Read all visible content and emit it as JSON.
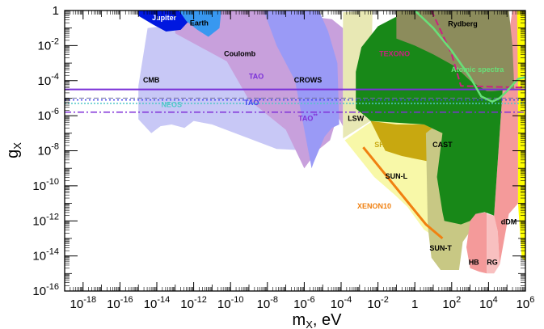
{
  "chart_data": {
    "type": "area",
    "xlabel_base": "m",
    "xlabel_sub": "X",
    "xlabel_unit": ", eV",
    "ylabel_base": "g",
    "ylabel_sub": "X",
    "xlim_log10": [
      -19,
      6
    ],
    "ylim_log10": [
      -16,
      0
    ],
    "log_scale": true,
    "x_ticks": [
      {
        "e": -18,
        "label": "10",
        "sup": "-18"
      },
      {
        "e": -16,
        "label": "10",
        "sup": "-16"
      },
      {
        "e": -14,
        "label": "10",
        "sup": "-14"
      },
      {
        "e": -12,
        "label": "10",
        "sup": "-12"
      },
      {
        "e": -10,
        "label": "10",
        "sup": "-10"
      },
      {
        "e": -8,
        "label": "10",
        "sup": "-8"
      },
      {
        "e": -6,
        "label": "10",
        "sup": "-6"
      },
      {
        "e": -4,
        "label": "10",
        "sup": "-4"
      },
      {
        "e": -2,
        "label": "10",
        "sup": "-2"
      },
      {
        "e": 0,
        "label": "1",
        "sup": ""
      },
      {
        "e": 2,
        "label": "10",
        "sup": "2"
      },
      {
        "e": 4,
        "label": "10",
        "sup": "4"
      },
      {
        "e": 6,
        "label": "10",
        "sup": "6"
      }
    ],
    "y_ticks": [
      {
        "e": 0,
        "label": "1",
        "sup": ""
      },
      {
        "e": -2,
        "label": "10",
        "sup": "-2"
      },
      {
        "e": -4,
        "label": "10",
        "sup": "-4"
      },
      {
        "e": -6,
        "label": "10",
        "sup": "-6"
      },
      {
        "e": -8,
        "label": "10",
        "sup": "-8"
      },
      {
        "e": -10,
        "label": "10",
        "sup": "-10"
      },
      {
        "e": -12,
        "label": "10",
        "sup": "-12"
      },
      {
        "e": -14,
        "label": "10",
        "sup": "-14"
      },
      {
        "e": -16,
        "label": "10",
        "sup": "-16"
      }
    ],
    "regions": [
      {
        "name": "cmb",
        "color": "#c8c8f6",
        "points": [
          [
            -15,
            -4.3
          ],
          [
            -14.5,
            -1
          ],
          [
            -13,
            -0.8
          ],
          [
            -11,
            -2
          ],
          [
            -9,
            -3
          ],
          [
            -7.5,
            -5
          ],
          [
            -5.5,
            -6.5
          ],
          [
            -5.5,
            -8
          ],
          [
            -7.5,
            -7.9
          ],
          [
            -9,
            -7.3
          ],
          [
            -11,
            -6.5
          ],
          [
            -12,
            -6.3
          ],
          [
            -12.5,
            -6.7
          ],
          [
            -13.2,
            -6.5
          ],
          [
            -13.8,
            -6.6
          ],
          [
            -14.3,
            -7
          ],
          [
            -15,
            -6.2
          ]
        ]
      },
      {
        "name": "coulomb",
        "color": "#c8a0dc",
        "points": [
          [
            -13,
            0
          ],
          [
            -8.3,
            0
          ],
          [
            -4.5,
            -0.5
          ],
          [
            -3.9,
            -1
          ],
          [
            -3.9,
            -6.6
          ],
          [
            -4.2,
            -6
          ],
          [
            -4.6,
            -7.4
          ],
          [
            -5.3,
            -8
          ],
          [
            -6,
            -9
          ],
          [
            -7,
            -6.8
          ],
          [
            -9,
            -5.1
          ],
          [
            -10.2,
            -2.9
          ],
          [
            -13,
            -1.3
          ]
        ]
      },
      {
        "name": "crows",
        "color": "#9a9af6",
        "points": [
          [
            -8.2,
            0
          ],
          [
            -5.2,
            0
          ],
          [
            -4.7,
            -1.2
          ],
          [
            -4.2,
            -3
          ],
          [
            -4.1,
            -6.5
          ],
          [
            -4.5,
            -6.7
          ],
          [
            -4.9,
            -7.2
          ],
          [
            -5.5,
            -8.7
          ],
          [
            -5.6,
            -9
          ],
          [
            -6.5,
            -4
          ],
          [
            -7.5,
            -2
          ]
        ]
      },
      {
        "name": "jupiter",
        "color": "#0018e0",
        "points": [
          [
            -15,
            0
          ],
          [
            -12,
            0
          ],
          [
            -12,
            -0.3
          ],
          [
            -12.7,
            -1.1
          ],
          [
            -13.5,
            -1.2
          ],
          [
            -14.2,
            -0.8
          ],
          [
            -15,
            -0.3
          ]
        ]
      },
      {
        "name": "earth",
        "color": "#3898f0",
        "points": [
          [
            -12.8,
            0
          ],
          [
            -10.5,
            0
          ],
          [
            -10.6,
            -1
          ],
          [
            -11.2,
            -1.5
          ],
          [
            -11.8,
            -1.1
          ],
          [
            -12.4,
            -0.6
          ]
        ]
      },
      {
        "name": "lsw",
        "color": "#e8e8b4",
        "points": [
          [
            -3.9,
            -0.1
          ],
          [
            -2.3,
            0
          ],
          [
            -2.4,
            -6.3
          ],
          [
            -3.9,
            -7.3
          ]
        ]
      },
      {
        "name": "sun_l",
        "color": "#f8f8a8",
        "points": [
          [
            -3.8,
            -7.4
          ],
          [
            -2.3,
            -6.3
          ],
          [
            1.8,
            -6.2
          ],
          [
            2.1,
            -9
          ],
          [
            2.5,
            -13
          ],
          [
            1.2,
            -13
          ],
          [
            0.5,
            -12.5
          ],
          [
            -0.4,
            -11.2
          ],
          [
            -1.1,
            -10.5
          ],
          [
            -2.2,
            -9.5
          ]
        ]
      },
      {
        "name": "ships",
        "color": "#c8a810",
        "points": [
          [
            -2.4,
            -6.3
          ],
          [
            -1,
            -6.5
          ],
          [
            0.5,
            -6.5
          ],
          [
            1.5,
            -7
          ],
          [
            1.7,
            -8.7
          ],
          [
            0.7,
            -8.6
          ],
          [
            -0.7,
            -8.3
          ],
          [
            -1.6,
            -8
          ],
          [
            -2.4,
            -6.3
          ]
        ]
      },
      {
        "name": "sun_t",
        "color": "#c8c884",
        "points": [
          [
            0.6,
            -7
          ],
          [
            1.8,
            -6
          ],
          [
            2.6,
            -5
          ],
          [
            3.4,
            -7
          ],
          [
            3.4,
            -12
          ],
          [
            2.6,
            -13.2
          ],
          [
            2.4,
            -14.8
          ],
          [
            1.4,
            -14.8
          ],
          [
            0.9,
            -14.1
          ],
          [
            0.7,
            -12.3
          ]
        ]
      },
      {
        "name": "hb",
        "color": "#f49a9a",
        "points": [
          [
            3,
            -12
          ],
          [
            3.3,
            -11.6
          ],
          [
            3.9,
            -11.5
          ],
          [
            3.9,
            -15
          ],
          [
            3.5,
            -14.9
          ],
          [
            3,
            -14.7
          ],
          [
            2.8,
            -13.5
          ]
        ]
      },
      {
        "name": "rg",
        "color": "#f8c0c0",
        "points": [
          [
            3.9,
            -11.6
          ],
          [
            4.3,
            -11.7
          ],
          [
            4.5,
            -12.6
          ],
          [
            4.6,
            -14.5
          ],
          [
            4.3,
            -15
          ],
          [
            3.9,
            -15
          ]
        ]
      },
      {
        "name": "red_band",
        "color": "#f49a9a",
        "points": [
          [
            4.3,
            -11.7
          ],
          [
            4.8,
            -4
          ],
          [
            5,
            -2
          ],
          [
            5.3,
            0
          ],
          [
            5.6,
            0
          ],
          [
            5.6,
            -4.8
          ],
          [
            5.6,
            -11
          ],
          [
            5.1,
            -11.6
          ],
          [
            4.6,
            -14.5
          ],
          [
            4.5,
            -12.6
          ]
        ]
      },
      {
        "name": "ddm",
        "color": "#ffff00",
        "points": [
          [
            5.55,
            0
          ],
          [
            6,
            0
          ],
          [
            6,
            -14.3
          ],
          [
            5.8,
            -14.1
          ],
          [
            5.6,
            -11
          ],
          [
            5.6,
            -4.8
          ]
        ]
      },
      {
        "name": "cast",
        "color": "#188818",
        "points": [
          [
            -3.2,
            -5.6
          ],
          [
            -3.2,
            -3.5
          ],
          [
            -2.9,
            -2.1
          ],
          [
            -2,
            -0.9
          ],
          [
            -1,
            -0.35
          ],
          [
            0,
            -0.1
          ],
          [
            0.4,
            0
          ],
          [
            5,
            0
          ],
          [
            4.8,
            -4
          ],
          [
            4.3,
            -11.7
          ],
          [
            3.8,
            -11.5
          ],
          [
            3.3,
            -11.6
          ],
          [
            3,
            -12
          ],
          [
            2.5,
            -12.2
          ],
          [
            1.6,
            -12
          ],
          [
            1.5,
            -11.5
          ],
          [
            1.2,
            -9.5
          ],
          [
            1.5,
            -7
          ],
          [
            0.5,
            -6.5
          ],
          [
            -2.4,
            -6.3
          ],
          [
            -2.6,
            -6.1
          ]
        ]
      },
      {
        "name": "rydberg",
        "color": "#8c8c5c",
        "points": [
          [
            -1,
            0
          ],
          [
            5.1,
            0
          ],
          [
            5.3,
            -2
          ],
          [
            5.4,
            -4.5
          ],
          [
            4.2,
            -4.6
          ],
          [
            3.9,
            -4.6
          ],
          [
            3,
            -4
          ],
          [
            2.2,
            -3.2
          ],
          [
            1,
            -2.5
          ],
          [
            0,
            -2
          ],
          [
            -1,
            -1.6
          ]
        ]
      }
    ],
    "lines": [
      {
        "name": "xenon10",
        "color": "#f08010",
        "width": 3,
        "dash": "",
        "points": [
          [
            -2.8,
            -7.8
          ],
          [
            0.6,
            -12.2
          ],
          [
            1.5,
            -13
          ]
        ]
      },
      {
        "name": "tao",
        "color": "#7a30d8",
        "width": 2,
        "dash": "",
        "points": [
          [
            -19,
            -4.5
          ],
          [
            6,
            -4.5
          ]
        ]
      },
      {
        "name": "tao_star",
        "color": "#4040f0",
        "width": 1.5,
        "dash": "2 3",
        "points": [
          [
            -19,
            -5.1
          ],
          [
            6,
            -5.1
          ]
        ]
      },
      {
        "name": "neos",
        "color": "#50c8c8",
        "width": 1.5,
        "dash": "2 2",
        "points": [
          [
            -19,
            -5.3
          ],
          [
            6,
            -5.3
          ]
        ]
      },
      {
        "name": "neos_dash",
        "color": "#7070a0",
        "width": 1,
        "dash": "6 3",
        "points": [
          [
            -19,
            -5.0
          ],
          [
            6,
            -5.0
          ]
        ]
      },
      {
        "name": "tao_star_star",
        "color": "#8030d8",
        "width": 1.5,
        "dash": "8 3 2 3",
        "points": [
          [
            -19,
            -5.8
          ],
          [
            6,
            -5.8
          ]
        ]
      },
      {
        "name": "texono",
        "color": "#cc2080",
        "width": 2,
        "dash": "8 4",
        "points": [
          [
            0.9,
            0
          ],
          [
            2,
            -2.5
          ],
          [
            2.5,
            -4.3
          ],
          [
            6,
            -4.4
          ]
        ]
      },
      {
        "name": "atomic_spectra",
        "color": "#68e078",
        "width": 2.5,
        "dash": "",
        "points": [
          [
            0,
            0
          ],
          [
            1,
            -1
          ],
          [
            2,
            -2.3
          ],
          [
            3,
            -3.8
          ],
          [
            3.6,
            -4.9
          ],
          [
            4.2,
            -5.2
          ],
          [
            4.6,
            -5
          ],
          [
            5,
            -4.6
          ],
          [
            5.6,
            -3.9
          ],
          [
            6,
            -3.8
          ]
        ]
      }
    ],
    "labels": [
      {
        "id": "jupiter",
        "text": "Jupiter",
        "x": -13.6,
        "y": -0.55,
        "color": "#ffffff"
      },
      {
        "id": "earth",
        "text": "Earth",
        "x": -11.7,
        "y": -0.85,
        "color": "#000000"
      },
      {
        "id": "coulomb",
        "text": "Coulomb",
        "x": -9.5,
        "y": -2.6,
        "color": "#000000"
      },
      {
        "id": "rydberg",
        "text": "Rydberg",
        "x": 2.6,
        "y": -0.9,
        "color": "#000000"
      },
      {
        "id": "cmb",
        "text": "CMB",
        "x": -14.3,
        "y": -4.1,
        "color": "#000000"
      },
      {
        "id": "tao",
        "text": "TAO",
        "x": -8.6,
        "y": -3.9,
        "color": "#7a30d8"
      },
      {
        "id": "crows",
        "text": "CROWS",
        "x": -5.8,
        "y": -4.1,
        "color": "#000000"
      },
      {
        "id": "texono",
        "text": "TEXONO",
        "x": -1.1,
        "y": -2.6,
        "color": "#cc2080"
      },
      {
        "id": "atomic",
        "text": "Atomic spectra",
        "x": 3.4,
        "y": -3.5,
        "color": "#68e078"
      },
      {
        "id": "neos",
        "text": "NEOS",
        "x": -13.2,
        "y": -5.5,
        "color": "#50c8c8"
      },
      {
        "id": "tao_star",
        "text": "TAO",
        "sup": "*",
        "x": -8.8,
        "y": -5.4,
        "color": "#4040f0"
      },
      {
        "id": "tao_star_star",
        "text": "TAO",
        "sup": "**",
        "x": -5.8,
        "y": -6.3,
        "color": "#8030d8"
      },
      {
        "id": "lsw",
        "text": "LSW",
        "x": -3.2,
        "y": -6.3,
        "color": "#000000"
      },
      {
        "id": "ships",
        "text": "SHIPS",
        "x": -1.6,
        "y": -7.8,
        "color": "#c8a810"
      },
      {
        "id": "cast",
        "text": "CAST",
        "x": 1.5,
        "y": -7.8,
        "color": "#000000"
      },
      {
        "id": "sun_l",
        "text": "SUN-L",
        "x": -1,
        "y": -9.6,
        "color": "#000000"
      },
      {
        "id": "xenon10",
        "text": "XENON10",
        "x": -2.2,
        "y": -11.3,
        "color": "#f08010"
      },
      {
        "id": "ddm",
        "text": "dDM",
        "x": 5.1,
        "y": -12.2,
        "color": "#000000"
      },
      {
        "id": "sun_t",
        "text": "SUN-T",
        "x": 1.4,
        "y": -13.7,
        "color": "#000000"
      },
      {
        "id": "hb",
        "text": "HB",
        "x": 3.2,
        "y": -14.5,
        "color": "#000000"
      },
      {
        "id": "rg",
        "text": "RG",
        "x": 4.2,
        "y": -14.5,
        "color": "#000000"
      }
    ]
  }
}
